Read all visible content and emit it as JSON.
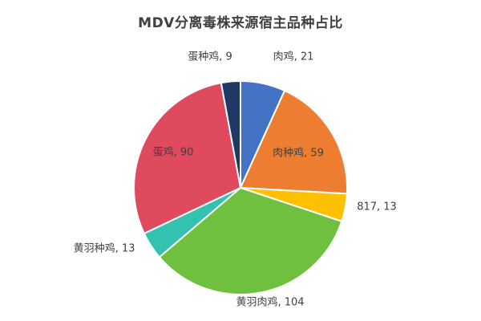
{
  "chart_data": {
    "type": "pie",
    "title": "MDV分离毒株来源宿主品种占比",
    "categories": [
      "肉鸡",
      "肉种鸡",
      "817",
      "黄羽肉鸡",
      "黄羽种鸡",
      "蛋鸡",
      "蛋种鸡"
    ],
    "values": [
      21,
      59,
      13,
      104,
      13,
      90,
      9
    ],
    "data_labels": [
      "肉鸡, 21",
      "肉种鸡, 59",
      "817, 13",
      "黄羽肉鸡, 104",
      "黄羽种鸡, 13",
      "蛋鸡, 90",
      "蛋种鸡, 9"
    ],
    "colors": [
      "#4472C4",
      "#ED7D31",
      "#FFC000",
      "#70C040",
      "#33C2B0",
      "#E04A5F",
      "#203864"
    ],
    "legend": "none",
    "start_angle_deg": 0,
    "direction": "clockwise"
  }
}
